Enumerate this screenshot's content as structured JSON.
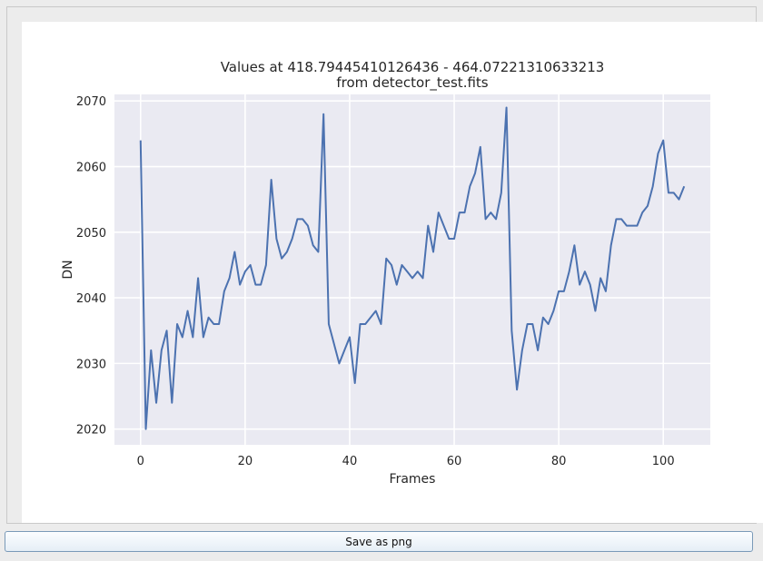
{
  "save_button_label": "Save as png",
  "chart_data": {
    "type": "line",
    "title": "Values at 418.79445410126436 - 464.07221310633213",
    "subtitle": "from detector_test.fits",
    "xlabel": "Frames",
    "ylabel": "DN",
    "xlim": [
      -5,
      109
    ],
    "ylim": [
      2017.6,
      2071
    ],
    "xticks": [
      0,
      20,
      40,
      60,
      80,
      100
    ],
    "yticks": [
      2020,
      2030,
      2040,
      2050,
      2060,
      2070
    ],
    "grid": true,
    "colors": {
      "line": "#4c72b0",
      "plot_bg": "#eaeaf2",
      "grid": "#ffffff"
    },
    "series": [
      {
        "x": [
          0,
          1,
          2,
          3,
          4,
          5,
          6,
          7,
          8,
          9,
          10,
          11,
          12,
          13,
          14,
          15,
          16,
          17,
          18,
          19,
          20,
          21,
          22,
          23,
          24,
          25,
          26,
          27,
          28,
          29,
          30,
          31,
          32,
          33,
          34,
          35,
          36,
          37,
          38,
          39,
          40,
          41,
          42,
          43,
          44,
          45,
          46,
          47,
          48,
          49,
          50,
          51,
          52,
          53,
          54,
          55,
          56,
          57,
          58,
          59,
          60,
          61,
          62,
          63,
          64,
          65,
          66,
          67,
          68,
          69,
          70,
          71,
          72,
          73,
          74,
          75,
          76,
          77,
          78,
          79,
          80,
          81,
          82,
          83,
          84,
          85,
          86,
          87,
          88,
          89,
          90,
          91,
          92,
          93,
          94,
          95,
          96,
          97,
          98,
          99,
          100,
          101,
          102,
          103,
          104
        ],
        "values": [
          2064,
          2020,
          2032,
          2024,
          2032,
          2035,
          2024,
          2036,
          2034,
          2038,
          2034,
          2043,
          2034,
          2037,
          2036,
          2036,
          2041,
          2043,
          2047,
          2042,
          2044,
          2045,
          2042,
          2042,
          2045,
          2058,
          2049,
          2046,
          2047,
          2049,
          2052,
          2052,
          2051,
          2048,
          2047,
          2068,
          2036,
          2033,
          2030,
          2032,
          2034,
          2027,
          2036,
          2036,
          2037,
          2038,
          2036,
          2046,
          2045,
          2042,
          2045,
          2044,
          2043,
          2044,
          2043,
          2051,
          2047,
          2053,
          2051,
          2049,
          2049,
          2053,
          2053,
          2057,
          2059,
          2063,
          2052,
          2053,
          2052,
          2056,
          2069,
          2035,
          2026,
          2032,
          2036,
          2036,
          2032,
          2037,
          2036,
          2038,
          2041,
          2041,
          2044,
          2048,
          2042,
          2044,
          2042,
          2038,
          2043,
          2041,
          2048,
          2052,
          2052,
          2051,
          2051,
          2051,
          2053,
          2054,
          2057,
          2062,
          2064,
          2056,
          2056,
          2055,
          2057
        ]
      }
    ]
  }
}
